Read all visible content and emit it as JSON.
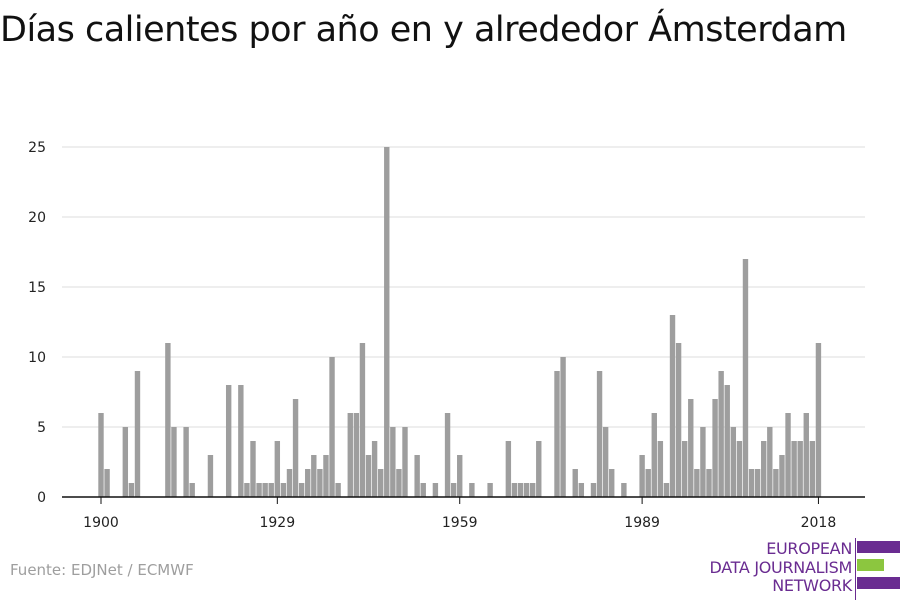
{
  "title": "Días calientes por año en y alrededor Ámsterdam",
  "source": "Fuente: EDJNet / ECMWF",
  "logo": {
    "lines": [
      "EUROPEAN",
      "DATA JOURNALISM",
      "NETWORK"
    ],
    "colors": {
      "purple": "#6a2c91",
      "green": "#8cc63f"
    }
  },
  "colors": {
    "bar": "#9e9e9e",
    "grid": "#dddddd",
    "axis": "#111111",
    "text": "#222222"
  },
  "chart_data": {
    "type": "bar",
    "title": "Días calientes por año en y alrededor Ámsterdam",
    "xlabel": "",
    "ylabel": "",
    "ylim": [
      0,
      25
    ],
    "yticks": [
      0,
      5,
      10,
      15,
      20,
      25
    ],
    "xticks": [
      1900,
      1929,
      1959,
      1989,
      2018
    ],
    "grid": true,
    "x": [
      1900,
      1901,
      1902,
      1903,
      1904,
      1905,
      1906,
      1907,
      1908,
      1909,
      1910,
      1911,
      1912,
      1913,
      1914,
      1915,
      1916,
      1917,
      1918,
      1919,
      1920,
      1921,
      1922,
      1923,
      1924,
      1925,
      1926,
      1927,
      1928,
      1929,
      1930,
      1931,
      1932,
      1933,
      1934,
      1935,
      1936,
      1937,
      1938,
      1939,
      1940,
      1941,
      1942,
      1943,
      1944,
      1945,
      1946,
      1947,
      1948,
      1949,
      1950,
      1951,
      1952,
      1953,
      1954,
      1955,
      1956,
      1957,
      1958,
      1959,
      1960,
      1961,
      1962,
      1963,
      1964,
      1965,
      1966,
      1967,
      1968,
      1969,
      1970,
      1971,
      1972,
      1973,
      1974,
      1975,
      1976,
      1977,
      1978,
      1979,
      1980,
      1981,
      1982,
      1983,
      1984,
      1985,
      1986,
      1987,
      1988,
      1989,
      1990,
      1991,
      1992,
      1993,
      1994,
      1995,
      1996,
      1997,
      1998,
      1999,
      2000,
      2001,
      2002,
      2003,
      2004,
      2005,
      2006,
      2007,
      2008,
      2009,
      2010,
      2011,
      2012,
      2013,
      2014,
      2015,
      2016,
      2017,
      2018
    ],
    "values": [
      6,
      2,
      0,
      0,
      5,
      1,
      9,
      0,
      0,
      0,
      0,
      11,
      5,
      0,
      5,
      1,
      0,
      0,
      3,
      0,
      0,
      8,
      0,
      8,
      1,
      4,
      1,
      1,
      1,
      4,
      1,
      2,
      7,
      1,
      2,
      3,
      2,
      3,
      10,
      1,
      0,
      6,
      6,
      11,
      3,
      4,
      2,
      25,
      5,
      2,
      5,
      0,
      3,
      1,
      0,
      1,
      0,
      6,
      1,
      3,
      0,
      1,
      0,
      0,
      1,
      0,
      0,
      4,
      1,
      1,
      1,
      1,
      4,
      0,
      0,
      9,
      10,
      0,
      2,
      1,
      0,
      1,
      9,
      5,
      2,
      0,
      1,
      0,
      0,
      3,
      2,
      6,
      4,
      1,
      13,
      11,
      4,
      7,
      2,
      5,
      2,
      7,
      9,
      8,
      5,
      4,
      17,
      2,
      2,
      4,
      5,
      2,
      3,
      6,
      4,
      4,
      6,
      4,
      11
    ]
  }
}
